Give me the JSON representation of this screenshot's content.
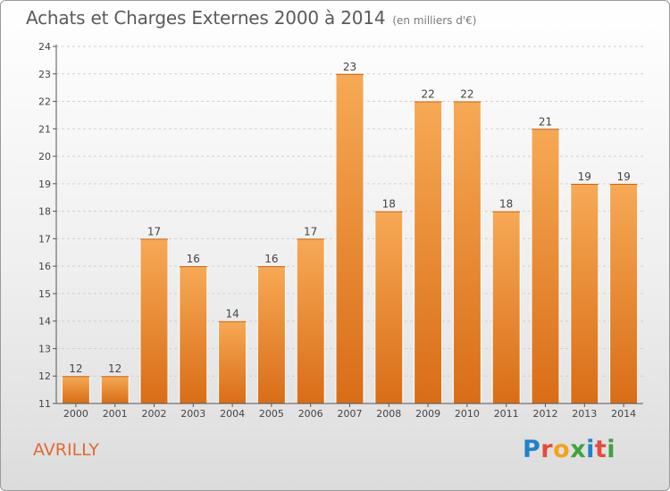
{
  "header": {
    "title": "Achats et Charges Externes 2000 à 2014",
    "subtitle": "(en milliers d'€)"
  },
  "footer": {
    "city": "AVRILLY",
    "logo": [
      {
        "ch": "P",
        "color": "#1f82c8"
      },
      {
        "ch": "r",
        "color": "#e64b3c"
      },
      {
        "ch": "o",
        "color": "#f3a21b"
      },
      {
        "ch": "x",
        "color": "#3da33d"
      },
      {
        "ch": "i",
        "color": "#1f82c8"
      },
      {
        "ch": "t",
        "color": "#e64b3c"
      },
      {
        "ch": "i",
        "color": "#3da33d"
      }
    ]
  },
  "chart_data": {
    "type": "bar",
    "title": "Achats et Charges Externes 2000 à 2014",
    "subtitle": "(en milliers d'€)",
    "categories": [
      "2000",
      "2001",
      "2002",
      "2003",
      "2004",
      "2005",
      "2006",
      "2007",
      "2008",
      "2009",
      "2010",
      "2011",
      "2012",
      "2013",
      "2014"
    ],
    "values": [
      12,
      12,
      17,
      16,
      14,
      16,
      17,
      23,
      18,
      22,
      22,
      18,
      21,
      19,
      19
    ],
    "data_labels": [
      "12",
      "12",
      "17",
      "16",
      "14",
      "16",
      "17",
      "23",
      "18",
      "22",
      "22",
      "18",
      "21",
      "19",
      "19"
    ],
    "yticks": [
      "11",
      "12",
      "13",
      "14",
      "15",
      "16",
      "17",
      "18",
      "19",
      "20",
      "21",
      "22",
      "23",
      "24"
    ],
    "ylim": [
      11,
      24
    ],
    "grid": true,
    "colors": {
      "bar_light": "#f7a955",
      "bar_dark": "#d96d17",
      "axis": "#555555",
      "grid": "#d0d0d0"
    }
  }
}
